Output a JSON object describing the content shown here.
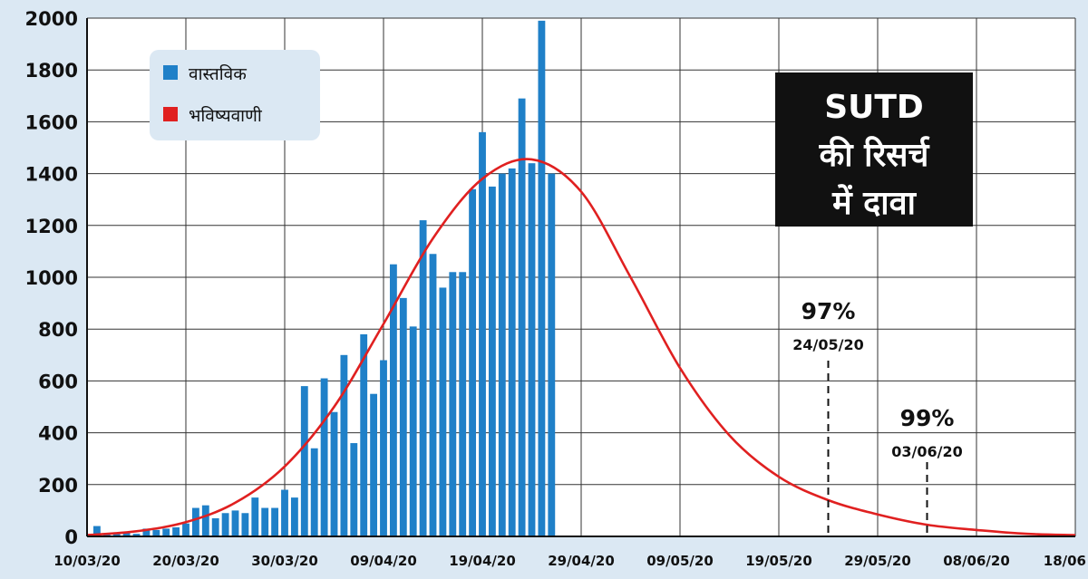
{
  "chart_data": {
    "type": "bar",
    "x_start": "10/03/20",
    "y_ticks": [
      0,
      200,
      400,
      600,
      800,
      1000,
      1200,
      1400,
      1600,
      1800,
      2000
    ],
    "ylim": [
      0,
      2000
    ],
    "x_tick_labels": [
      "10/03/20",
      "20/03/20",
      "30/03/20",
      "09/04/20",
      "19/04/20",
      "29/04/20",
      "09/05/20",
      "19/05/20",
      "29/05/20",
      "08/06/20",
      "18/06"
    ],
    "grid": true,
    "legend": {
      "placement": "top-left",
      "items": [
        {
          "label": "वास्तविक",
          "color": "#1f80c8"
        },
        {
          "label": "भविष्यवाणी",
          "color": "#e02020"
        }
      ]
    },
    "callout": {
      "lines": [
        "SUTD",
        "की रिसर्च",
        "में दावा"
      ]
    },
    "series": [
      {
        "name": "वास्तविक",
        "type": "bar",
        "color": "#1f80c8",
        "x_start": "10/03/20",
        "values": [
          40,
          10,
          15,
          15,
          10,
          30,
          25,
          30,
          35,
          50,
          110,
          120,
          70,
          90,
          100,
          90,
          150,
          110,
          110,
          180,
          150,
          580,
          340,
          610,
          480,
          700,
          360,
          780,
          550,
          680,
          1050,
          920,
          810,
          1220,
          1090,
          960,
          1020,
          1020,
          1340,
          1560,
          1350,
          1400,
          1420,
          1690,
          1440,
          1990,
          1400
        ]
      },
      {
        "name": "भविष्यवाणी",
        "type": "line",
        "color": "#e02020",
        "peak_date": "27/04/20",
        "peak_value": 1455,
        "x": [
          "10/03/20",
          "15/03/20",
          "20/03/20",
          "25/03/20",
          "30/03/20",
          "04/04/20",
          "09/04/20",
          "14/04/20",
          "19/04/20",
          "24/04/20",
          "29/04/20",
          "04/05/20",
          "09/05/20",
          "14/05/20",
          "19/05/20",
          "24/05/20",
          "29/05/20",
          "03/06/20",
          "08/06/20",
          "13/06/20",
          "18/06/20"
        ],
        "y": [
          5,
          20,
          55,
          130,
          270,
          500,
          820,
          1150,
          1380,
          1455,
          1330,
          1000,
          650,
          390,
          230,
          140,
          85,
          45,
          25,
          10,
          5
        ]
      }
    ],
    "annotations": [
      {
        "date": "24/05/20",
        "percent": "97%",
        "date_label": "24/05/20"
      },
      {
        "date": "03/06/20",
        "percent": "99%",
        "date_label": "03/06/20"
      }
    ]
  }
}
